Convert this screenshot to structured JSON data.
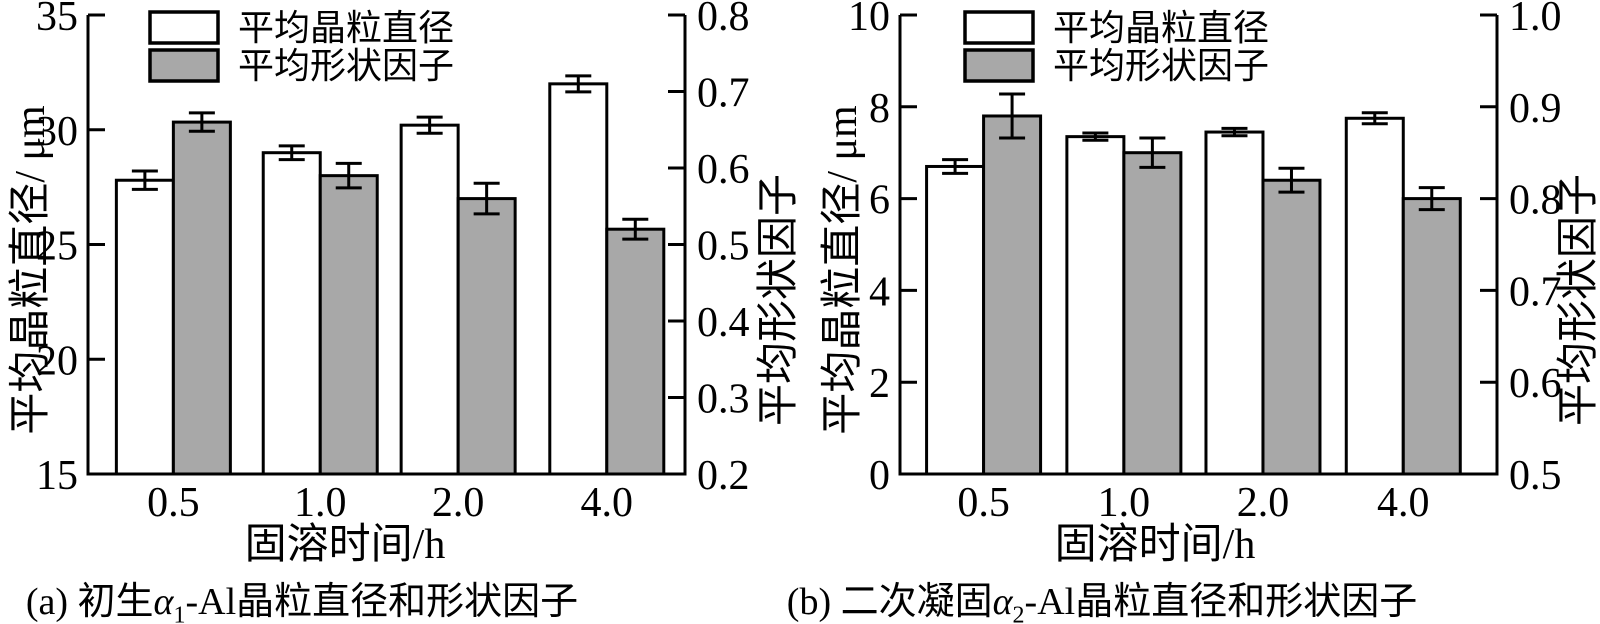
{
  "figure": {
    "background": "#ffffff",
    "line_color": "#000000",
    "diameter_bar_fill": "#ffffff",
    "shape_bar_fill": "#a8a8a8"
  },
  "legend": {
    "items": [
      {
        "label": "平均晶粒直径",
        "fill": "#ffffff"
      },
      {
        "label": "平均形状因子",
        "fill": "#a8a8a8"
      }
    ]
  },
  "chart_data": [
    {
      "id": "a",
      "type": "bar",
      "title": "",
      "caption": "(a) 初生α1-Al晶粒直径和形状因子",
      "caption_prefix": "(a) 初生",
      "caption_alpha": "α",
      "caption_sub": "1",
      "caption_suffix": "-Al晶粒直径和形状因子",
      "xlabel": "固溶时间/h",
      "ylabel_left": "平均晶粒直径/ μm",
      "ylabel_right": "平均形状因子",
      "categories": [
        "0.5",
        "1.0",
        "2.0",
        "4.0"
      ],
      "left_axis": {
        "min": 15,
        "max": 35,
        "ticks": [
          15,
          20,
          25,
          30,
          35
        ],
        "tick_labels": [
          "15",
          "20",
          "25",
          "30",
          "35"
        ]
      },
      "right_axis": {
        "min": 0.2,
        "max": 0.8,
        "ticks": [
          0.2,
          0.3,
          0.4,
          0.5,
          0.6,
          0.7,
          0.8
        ],
        "tick_labels": [
          "0.2",
          "0.3",
          "0.4",
          "0.5",
          "0.6",
          "0.7",
          "0.8"
        ]
      },
      "grid": false,
      "legend_position": "top-left-inside",
      "series": [
        {
          "name": "平均晶粒直径",
          "axis": "left",
          "fill": "#ffffff",
          "values": [
            27.8,
            29.0,
            30.2,
            32.0
          ],
          "errors": [
            0.4,
            0.3,
            0.35,
            0.35
          ]
        },
        {
          "name": "平均形状因子",
          "axis": "right",
          "fill": "#a8a8a8",
          "values": [
            0.66,
            0.59,
            0.56,
            0.52
          ],
          "errors": [
            0.012,
            0.016,
            0.02,
            0.013
          ]
        }
      ]
    },
    {
      "id": "b",
      "type": "bar",
      "title": "",
      "caption": "(b) 二次凝固α2-Al晶粒直径和形状因子",
      "caption_prefix": "(b) 二次凝固",
      "caption_alpha": "α",
      "caption_sub": "2",
      "caption_suffix": "-Al晶粒直径和形状因子",
      "xlabel": "固溶时间/h",
      "ylabel_left": "平均晶粒直径/ μm",
      "ylabel_right": "平均形状因子",
      "categories": [
        "0.5",
        "1.0",
        "2.0",
        "4.0"
      ],
      "left_axis": {
        "min": 0,
        "max": 10,
        "ticks": [
          0,
          2,
          4,
          6,
          8,
          10
        ],
        "tick_labels": [
          "0",
          "2",
          "4",
          "6",
          "8",
          "10"
        ]
      },
      "right_axis": {
        "min": 0.5,
        "max": 1.0,
        "ticks": [
          0.5,
          0.6,
          0.7,
          0.8,
          0.9,
          1.0
        ],
        "tick_labels": [
          "0.5",
          "0.6",
          "0.7",
          "0.8",
          "0.9",
          "1.0"
        ]
      },
      "grid": false,
      "legend_position": "top-left-inside",
      "series": [
        {
          "name": "平均晶粒直径",
          "axis": "left",
          "fill": "#ffffff",
          "values": [
            6.7,
            7.35,
            7.45,
            7.75
          ],
          "errors": [
            0.15,
            0.08,
            0.08,
            0.12
          ]
        },
        {
          "name": "平均形状因子",
          "axis": "right",
          "fill": "#a8a8a8",
          "values": [
            0.89,
            0.85,
            0.82,
            0.8
          ],
          "errors": [
            0.024,
            0.016,
            0.013,
            0.012
          ]
        }
      ]
    }
  ]
}
